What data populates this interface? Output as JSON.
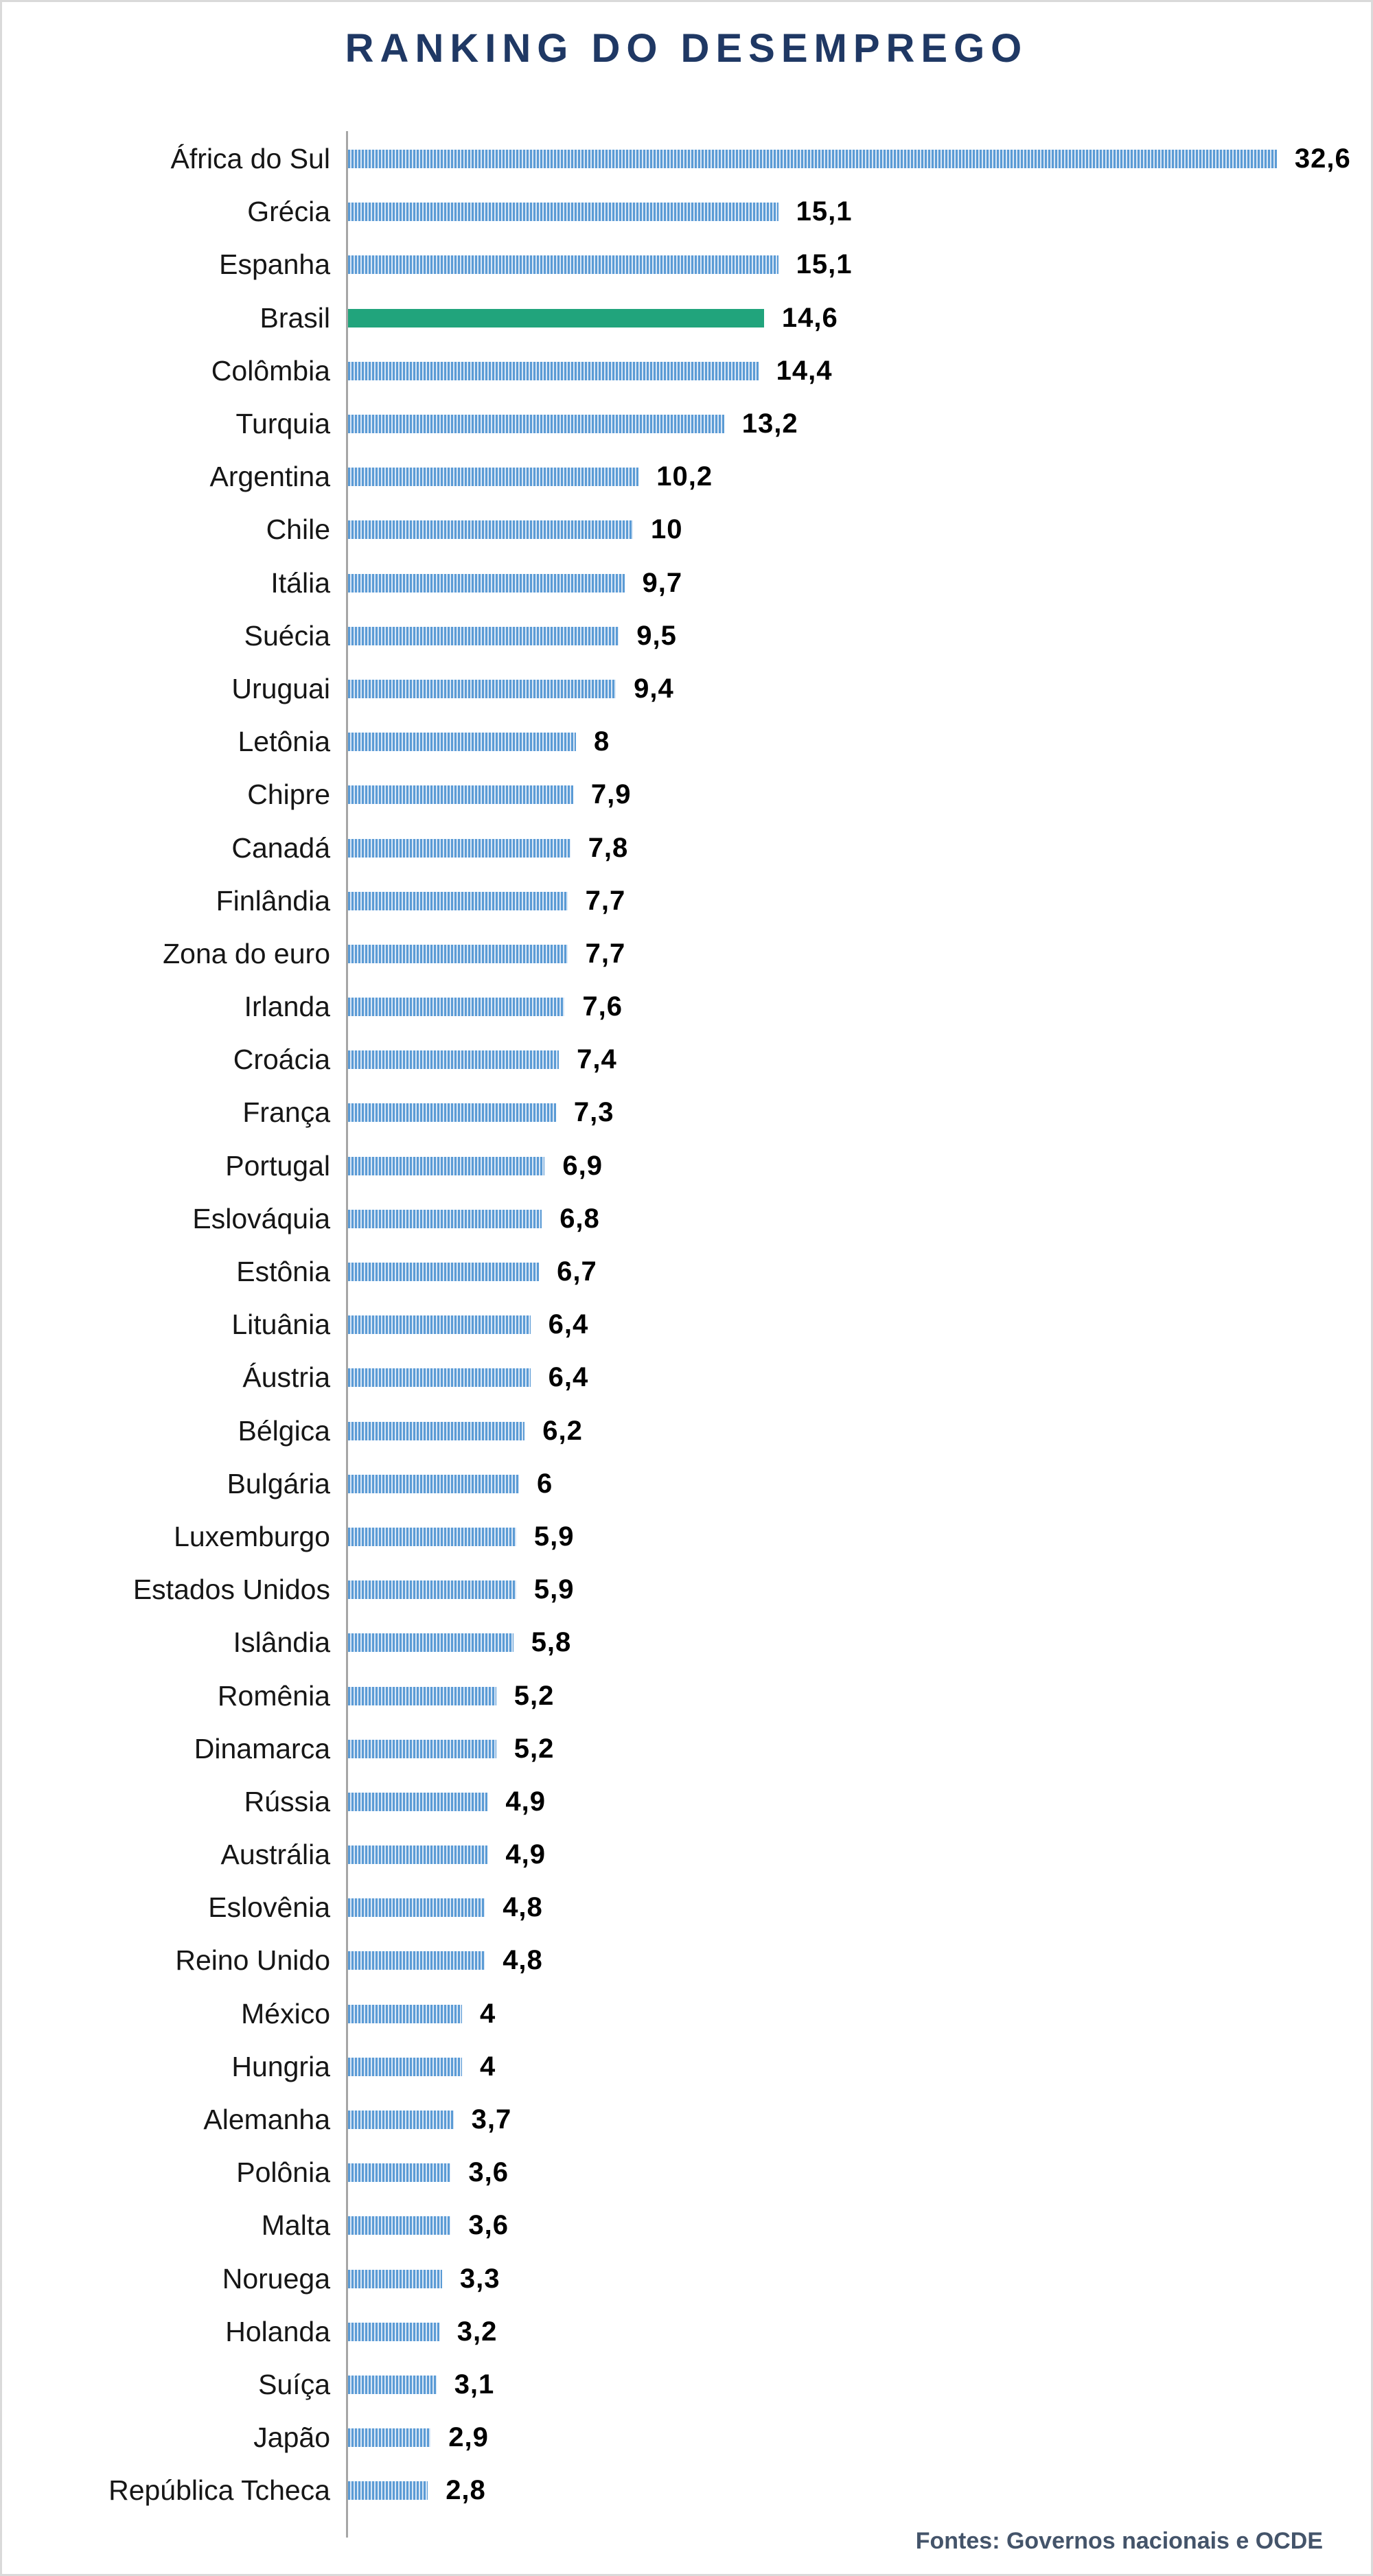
{
  "title": "RANKING DO DESEMPREGO",
  "footer": "Fontes: Governos nacionais e OCDE",
  "colors": {
    "title_navy": "#1F3864",
    "bar_blue": "#5B9BD5",
    "bar_stripe_gap": "#D9E7F6",
    "bar_highlight_green": "#21A47C",
    "axis_gray": "#A6A6A6",
    "value_black": "#000000",
    "footer_slate": "#44546A",
    "page_border": "#DADADA"
  },
  "chart_data": {
    "type": "bar",
    "orientation": "horizontal",
    "title": "RANKING DO DESEMPREGO",
    "xlabel": "",
    "ylabel": "",
    "xlim": [
      0,
      34
    ],
    "grid": false,
    "legend": false,
    "source": "Fontes: Governos nacionais e OCDE",
    "highlight_category": "Brasil",
    "categories": [
      "África do Sul",
      "Grécia",
      "Espanha",
      "Brasil",
      "Colômbia",
      "Turquia",
      "Argentina",
      "Chile",
      "Itália",
      "Suécia",
      "Uruguai",
      "Letônia",
      "Chipre",
      "Canadá",
      "Finlândia",
      "Zona do euro",
      "Irlanda",
      "Croácia",
      "França",
      "Portugal",
      "Eslováquia",
      "Estônia",
      "Lituânia",
      "Áustria",
      "Bélgica",
      "Bulgária",
      "Luxemburgo",
      "Estados Unidos",
      "Islândia",
      "Romênia",
      "Dinamarca",
      "Rússia",
      "Austrália",
      "Eslovênia",
      "Reino Unido",
      "México",
      "Hungria",
      "Alemanha",
      "Polônia",
      "Malta",
      "Noruega",
      "Holanda",
      "Suíça",
      "Japão",
      "República Tcheca"
    ],
    "values": [
      32.6,
      15.1,
      15.1,
      14.6,
      14.4,
      13.2,
      10.2,
      10,
      9.7,
      9.5,
      9.4,
      8,
      7.9,
      7.8,
      7.7,
      7.7,
      7.6,
      7.4,
      7.3,
      6.9,
      6.8,
      6.7,
      6.4,
      6.4,
      6.2,
      6,
      5.9,
      5.9,
      5.8,
      5.2,
      5.2,
      4.9,
      4.9,
      4.8,
      4.8,
      4,
      4,
      3.7,
      3.6,
      3.6,
      3.3,
      3.2,
      3.1,
      2.9,
      2.8
    ],
    "value_labels": [
      "32,6",
      "15,1",
      "15,1",
      "14,6",
      "14,4",
      "13,2",
      "10,2",
      "10",
      "9,7",
      "9,5",
      "9,4",
      "8",
      "7,9",
      "7,8",
      "7,7",
      "7,7",
      "7,6",
      "7,4",
      "7,3",
      "6,9",
      "6,8",
      "6,7",
      "6,4",
      "6,4",
      "6,2",
      "6",
      "5,9",
      "5,9",
      "5,8",
      "5,2",
      "5,2",
      "4,9",
      "4,9",
      "4,8",
      "4,8",
      "4",
      "4",
      "3,7",
      "3,6",
      "3,6",
      "3,3",
      "3,2",
      "3,1",
      "2,9",
      "2,8"
    ]
  }
}
